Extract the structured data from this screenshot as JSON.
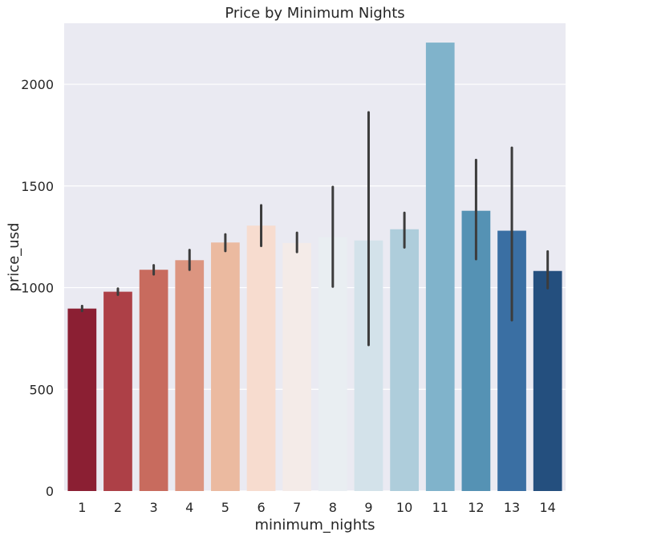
{
  "chart_data": {
    "type": "bar",
    "title": "Price by Minimum Nights",
    "xlabel": "minimum_nights",
    "ylabel": "price_usd",
    "categories": [
      "1",
      "2",
      "3",
      "4",
      "5",
      "6",
      "7",
      "8",
      "9",
      "10",
      "11",
      "12",
      "13",
      "14"
    ],
    "values": [
      897,
      980,
      1088,
      1135,
      1222,
      1305,
      1220,
      1248,
      1232,
      1287,
      2205,
      1378,
      1280,
      1082
    ],
    "error_bars": [
      [
        885,
        910
      ],
      [
        965,
        995
      ],
      [
        1065,
        1110
      ],
      [
        1088,
        1185
      ],
      [
        1180,
        1262
      ],
      [
        1205,
        1405
      ],
      [
        1175,
        1270
      ],
      [
        1005,
        1495
      ],
      [
        718,
        1862
      ],
      [
        1198,
        1368
      ],
      null,
      [
        1140,
        1628
      ],
      [
        840,
        1688
      ],
      [
        997,
        1178
      ]
    ],
    "colors": [
      "#8b1f33",
      "#ad4047",
      "#c86b5e",
      "#dc9580",
      "#ebbaa0",
      "#f7dccf",
      "#f4ebe8",
      "#e9eef2",
      "#d3e2ea",
      "#aecddb",
      "#80b3cb",
      "#5592b4",
      "#3a6fa3",
      "#244f7e"
    ],
    "ylim": [
      0,
      2300
    ],
    "yticks": [
      0,
      500,
      1000,
      1500,
      2000
    ],
    "grid": true,
    "legend": "none",
    "plot_background": "#eaeaf2",
    "error_color": "#3c3c3c"
  }
}
